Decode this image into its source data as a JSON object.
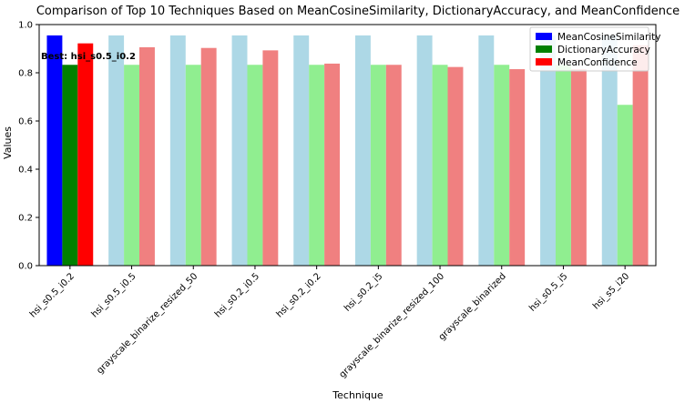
{
  "chart_data": {
    "type": "bar",
    "title": "Comparison of Top 10 Techniques Based on MeanCosineSimilarity, DictionaryAccuracy, and MeanConfidence",
    "xlabel": "Technique",
    "ylabel": "Values",
    "ylim": [
      0,
      1.0
    ],
    "yticks": [
      "0.0",
      "0.2",
      "0.4",
      "0.6",
      "0.8",
      "1.0"
    ],
    "grid": false,
    "legend_position": "top-right",
    "categories": [
      "hsi_s0.5_i0.2",
      "hsi_s0.5_i0.5",
      "grayscale_binarize_resized_50",
      "hsi_s0.2_i0.5",
      "hsi_s0.2_i0.2",
      "hsi_s0.2_i5",
      "grayscale_binarize_resized_100",
      "grayscale_binarized",
      "hsi_s0.5_i5",
      "hsi_s5_i20"
    ],
    "series": [
      {
        "name": "MeanCosineSimilarity",
        "legend_color": "#0000ff",
        "color": "#add8e6",
        "highlight_color": "#0000ff",
        "values": [
          0.955,
          0.955,
          0.955,
          0.955,
          0.955,
          0.955,
          0.955,
          0.955,
          0.955,
          0.955
        ]
      },
      {
        "name": "DictionaryAccuracy",
        "legend_color": "#008000",
        "color": "#90ee90",
        "highlight_color": "#008000",
        "values": [
          0.833,
          0.833,
          0.833,
          0.833,
          0.833,
          0.833,
          0.833,
          0.833,
          0.833,
          0.667
        ]
      },
      {
        "name": "MeanConfidence",
        "legend_color": "#ff0000",
        "color": "#f08080",
        "highlight_color": "#ff0000",
        "values": [
          0.922,
          0.906,
          0.903,
          0.893,
          0.838,
          0.833,
          0.824,
          0.815,
          0.815,
          0.914
        ]
      }
    ],
    "highlight_index": 0,
    "annotation": {
      "text": "Best: hsi_s0.5_i0.2",
      "y": 0.87
    }
  }
}
